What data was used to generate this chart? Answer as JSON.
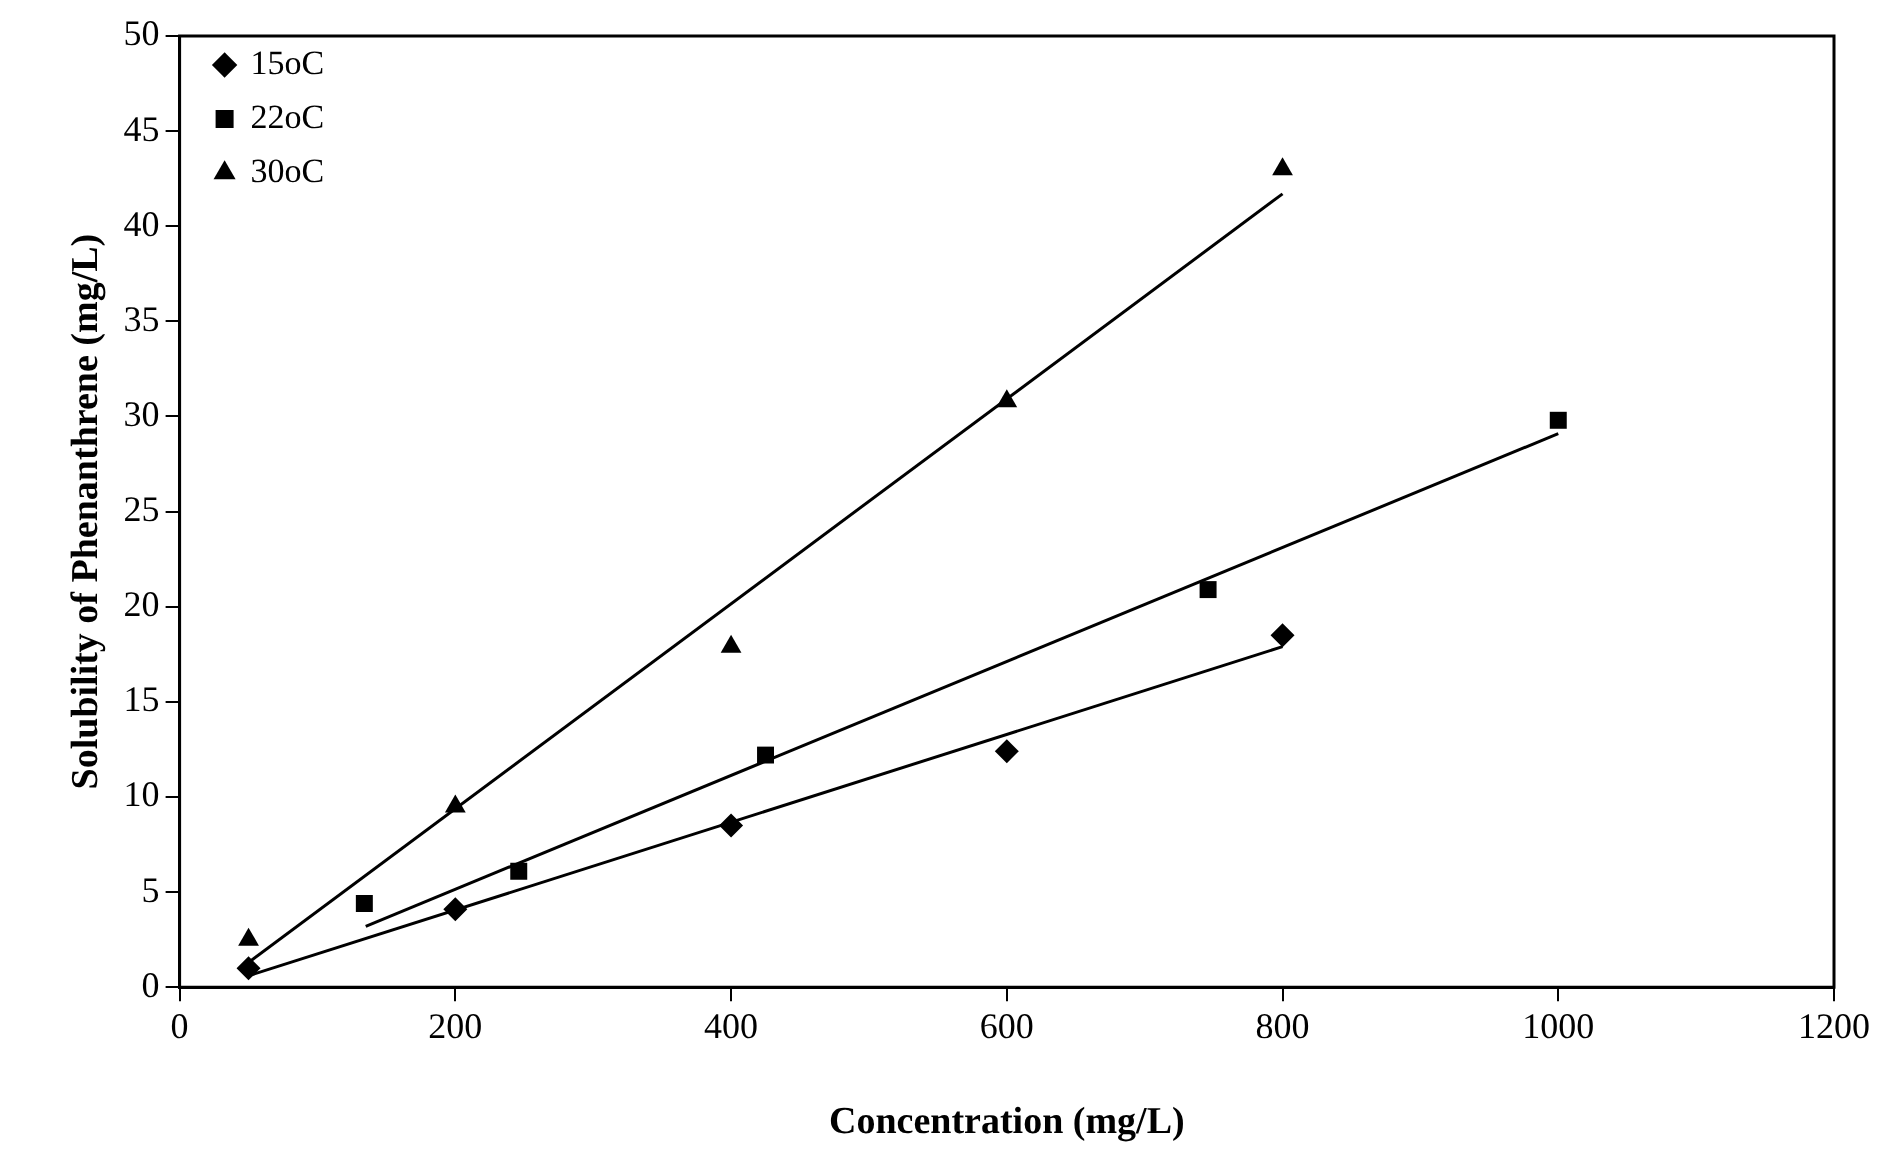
{
  "chart_data": {
    "type": "scatter",
    "xlabel": "Concentration (mg/L)",
    "ylabel": "Solubility of Phenanthrene (mg/L)",
    "xlim": [
      0,
      1200
    ],
    "xticks": [
      0,
      200,
      400,
      600,
      800,
      1000,
      1200
    ],
    "ylim": [
      0,
      50
    ],
    "yticks": [
      0,
      5,
      10,
      15,
      20,
      25,
      30,
      35,
      40,
      45,
      50
    ],
    "grid": false,
    "legend": "top left",
    "series": [
      {
        "name": "15oC",
        "type": "scatter",
        "marker": "diamond",
        "color": "#000000",
        "x": [
          50,
          200,
          400,
          600,
          800
        ],
        "values": [
          1.0,
          4.1,
          8.5,
          12.4,
          18.5
        ]
      },
      {
        "name": "22oC",
        "type": "scatter",
        "marker": "square",
        "color": "#000000",
        "x": [
          134,
          246,
          425,
          746,
          1000
        ],
        "values": [
          4.4,
          6.1,
          12.2,
          20.9,
          29.8
        ]
      },
      {
        "name": "30oC",
        "type": "scatter",
        "marker": "triangle",
        "color": "#000000",
        "x": [
          50,
          200,
          400,
          600,
          800
        ],
        "values": [
          2.5,
          9.5,
          17.9,
          30.8,
          43.0
        ]
      },
      {
        "type": "line",
        "marker": "none",
        "color": "#000000",
        "x": [
          50,
          800
        ],
        "values": [
          0.6,
          17.9
        ]
      },
      {
        "type": "line",
        "marker": "none",
        "color": "#000000",
        "x": [
          135,
          1000
        ],
        "values": [
          3.2,
          29.1
        ]
      },
      {
        "type": "line",
        "marker": "none",
        "color": "#000000",
        "x": [
          50,
          800
        ],
        "values": [
          1.3,
          41.7
        ]
      }
    ]
  }
}
